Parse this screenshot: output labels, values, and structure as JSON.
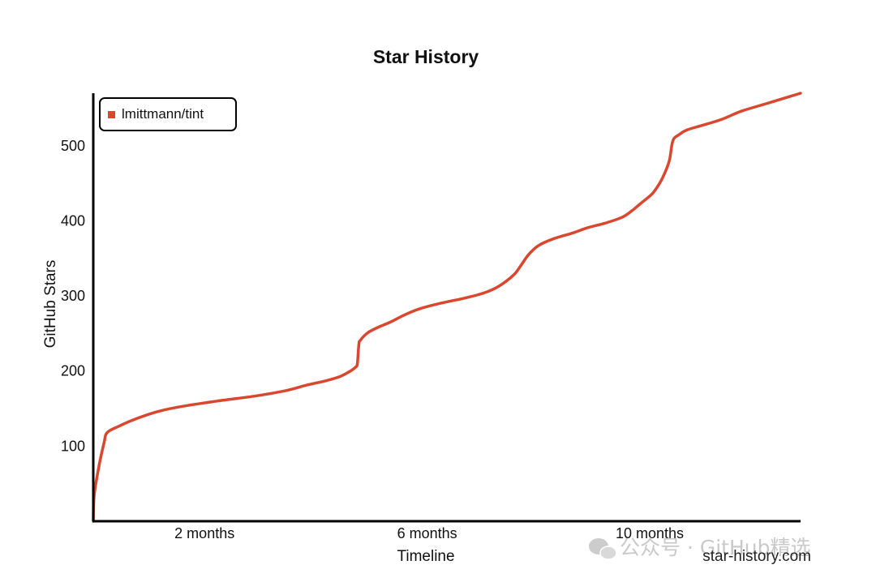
{
  "chart_data": {
    "type": "line",
    "title": "Star History",
    "xlabel": "Timeline",
    "ylabel": "GitHub Stars",
    "x_unit": "months",
    "xlim": [
      0,
      14.3
    ],
    "ylim": [
      0,
      570
    ],
    "x_ticks": [
      {
        "value": 2.25,
        "label": "2 months"
      },
      {
        "value": 6.75,
        "label": "6 months"
      },
      {
        "value": 11.25,
        "label": "10 months"
      }
    ],
    "y_ticks": [
      {
        "value": 100,
        "label": "100"
      },
      {
        "value": 200,
        "label": "200"
      },
      {
        "value": 300,
        "label": "300"
      },
      {
        "value": 400,
        "label": "400"
      },
      {
        "value": 500,
        "label": "500"
      }
    ],
    "grid": false,
    "legend_position": "top-left",
    "series": [
      {
        "name": "lmittmann/tint",
        "color": "#d9472f",
        "points": [
          [
            0,
            0
          ],
          [
            0.02,
            35
          ],
          [
            0.12,
            75
          ],
          [
            0.22,
            105
          ],
          [
            0.28,
            118
          ],
          [
            0.5,
            126
          ],
          [
            0.85,
            136
          ],
          [
            1.3,
            146
          ],
          [
            1.8,
            153
          ],
          [
            2.5,
            160
          ],
          [
            3.3,
            167
          ],
          [
            3.9,
            174
          ],
          [
            4.3,
            181
          ],
          [
            4.7,
            187
          ],
          [
            5.0,
            193
          ],
          [
            5.2,
            200
          ],
          [
            5.3,
            205
          ],
          [
            5.34,
            210
          ],
          [
            5.37,
            236
          ],
          [
            5.4,
            241
          ],
          [
            5.55,
            251
          ],
          [
            5.75,
            258
          ],
          [
            6.0,
            265
          ],
          [
            6.3,
            275
          ],
          [
            6.6,
            283
          ],
          [
            7.0,
            290
          ],
          [
            7.5,
            297
          ],
          [
            7.9,
            304
          ],
          [
            8.2,
            313
          ],
          [
            8.5,
            328
          ],
          [
            8.65,
            341
          ],
          [
            8.8,
            355
          ],
          [
            9.0,
            367
          ],
          [
            9.3,
            376
          ],
          [
            9.7,
            384
          ],
          [
            10.0,
            391
          ],
          [
            10.35,
            397
          ],
          [
            10.7,
            405
          ],
          [
            10.9,
            414
          ],
          [
            11.1,
            425
          ],
          [
            11.3,
            436
          ],
          [
            11.45,
            450
          ],
          [
            11.55,
            463
          ],
          [
            11.65,
            481
          ],
          [
            11.72,
            507
          ],
          [
            11.85,
            515
          ],
          [
            12.0,
            521
          ],
          [
            12.3,
            527
          ],
          [
            12.7,
            535
          ],
          [
            13.1,
            546
          ],
          [
            13.6,
            556
          ],
          [
            14.3,
            570
          ]
        ]
      }
    ]
  },
  "credit": "star-history.com",
  "watermark": "公众号 · GitHub精选"
}
